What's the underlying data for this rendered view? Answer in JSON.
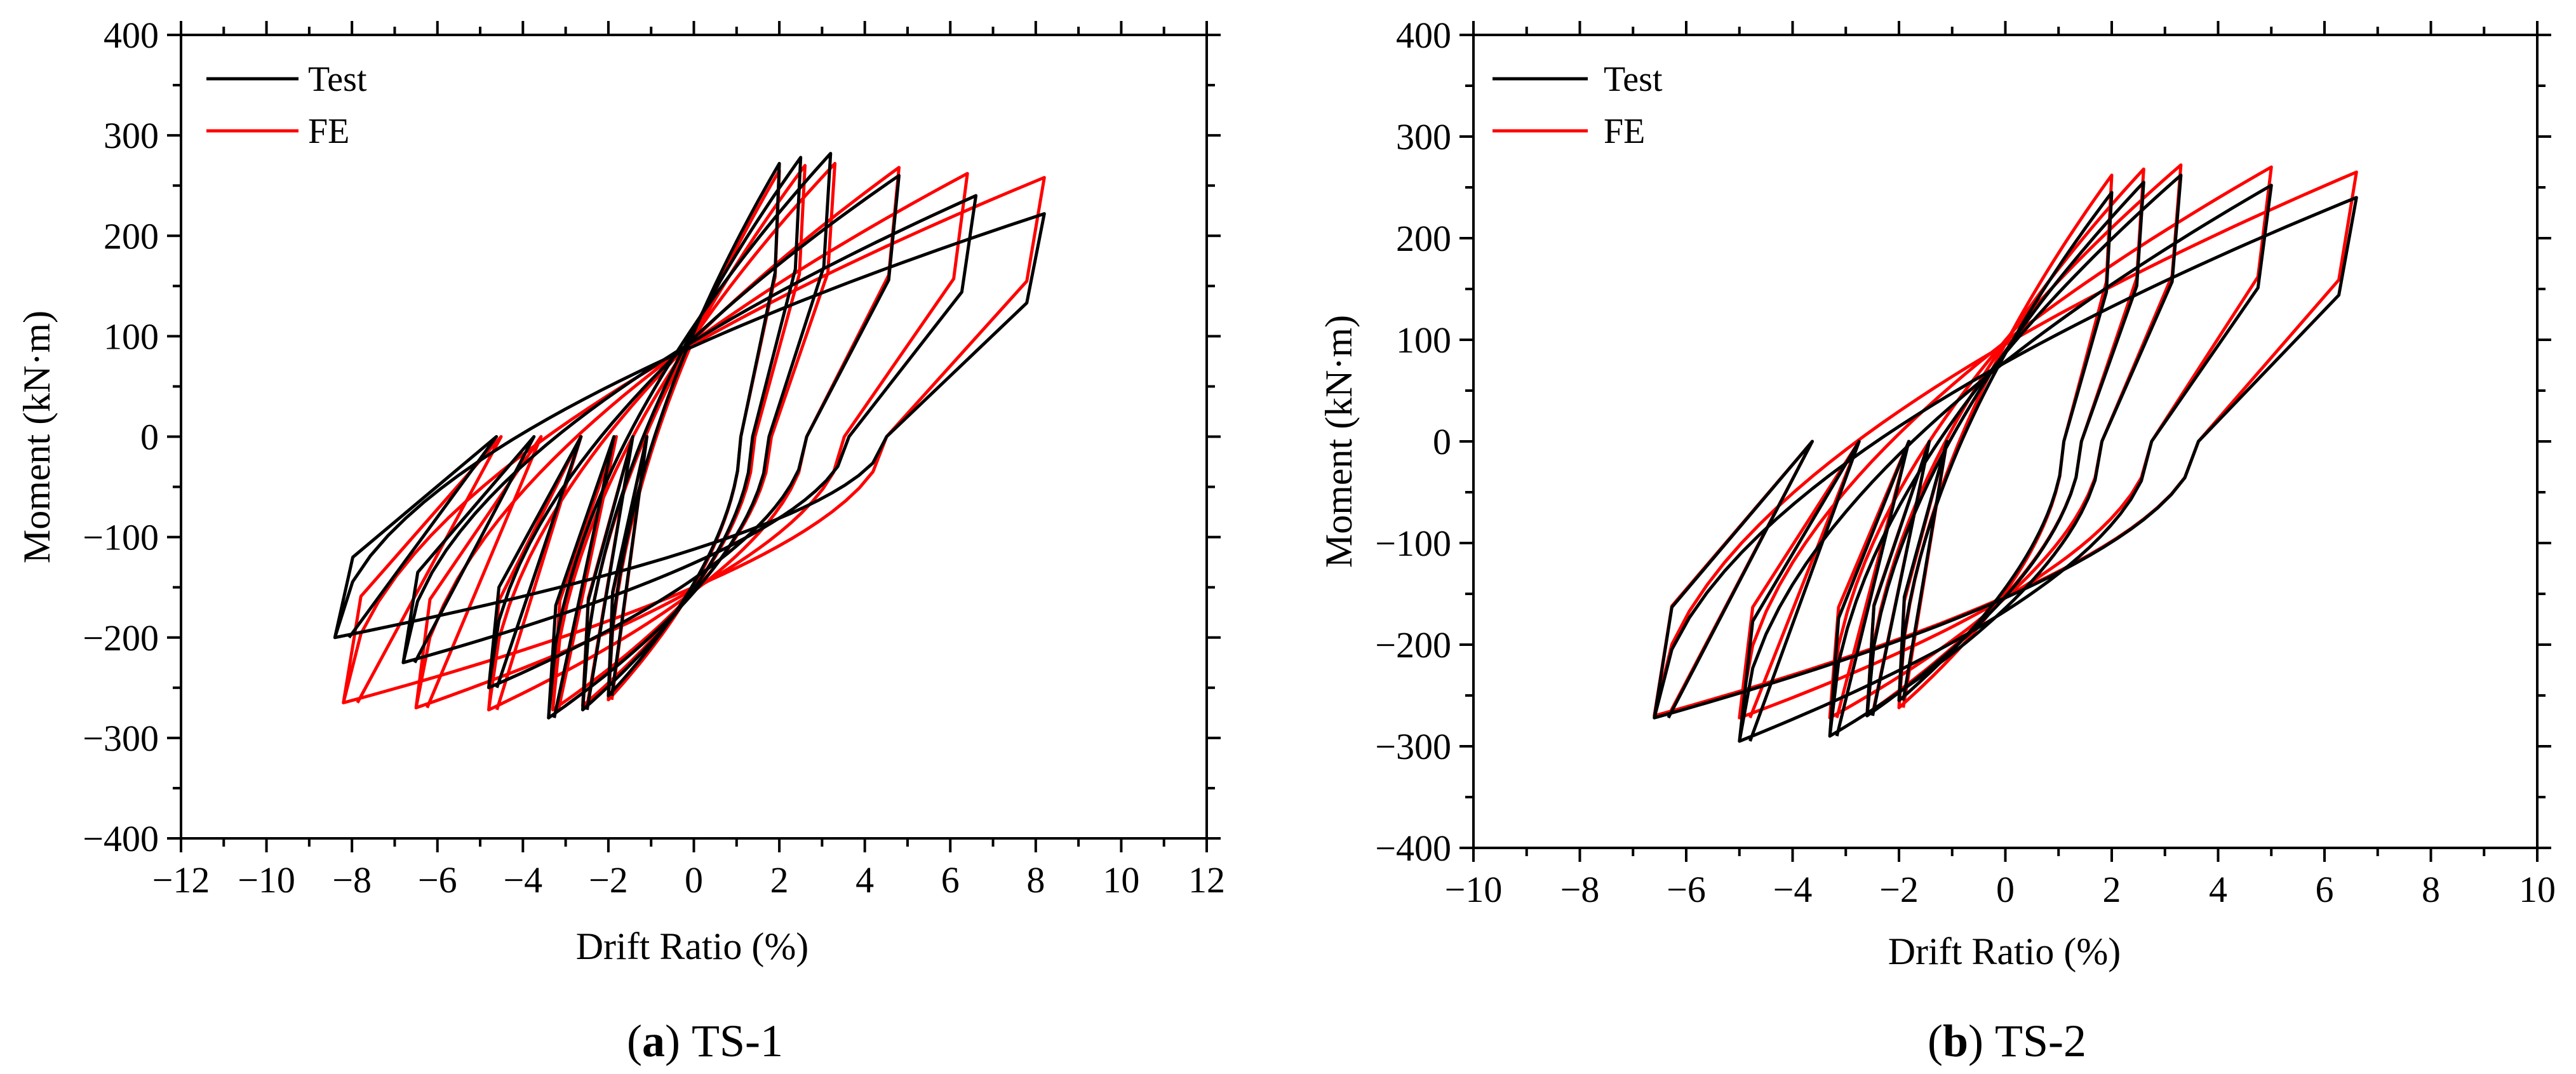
{
  "chart_data": [
    {
      "type": "line",
      "caption": {
        "open": "(",
        "tag": "a",
        "close": ")",
        "text": "TS-1"
      },
      "xlabel": "Drift Ratio (%)",
      "ylabel": "Moment (kN·m)",
      "xlim": [
        -12,
        12
      ],
      "ylim": [
        -400,
        400
      ],
      "xticks": [
        -12,
        -10,
        -8,
        -6,
        -4,
        -2,
        0,
        2,
        4,
        6,
        8,
        10,
        12
      ],
      "yticks": [
        -400,
        -300,
        -200,
        -100,
        0,
        100,
        200,
        300,
        400
      ],
      "xtick_labels": [
        "−12",
        "−10",
        "−8",
        "−6",
        "−4",
        "−2",
        "0",
        "2",
        "4",
        "6",
        "8",
        "10",
        "12"
      ],
      "ytick_labels": [
        "−400",
        "−300",
        "−200",
        "−100",
        "0",
        "100",
        "200",
        "300",
        "400"
      ],
      "legend_position": "top-left",
      "series": [
        {
          "name": "Test",
          "color": "#000000",
          "loops": [
            {
              "d_pos": 2.0,
              "m_pos": 272,
              "d_neg": -2.0,
              "m_neg": -258
            },
            {
              "d_pos": 2.5,
              "m_pos": 278,
              "d_neg": -2.6,
              "m_neg": -272
            },
            {
              "d_pos": 3.2,
              "m_pos": 282,
              "d_neg": -3.4,
              "m_neg": -280
            },
            {
              "d_pos": 4.8,
              "m_pos": 260,
              "d_neg": -4.8,
              "m_neg": -250
            },
            {
              "d_pos": 6.6,
              "m_pos": 240,
              "d_neg": -6.8,
              "m_neg": -225
            },
            {
              "d_pos": 8.2,
              "m_pos": 222,
              "d_neg": -8.4,
              "m_neg": -200
            }
          ]
        },
        {
          "name": "FE",
          "color": "#ff0000",
          "loops": [
            {
              "d_pos": 2.0,
              "m_pos": 265,
              "d_neg": -2.0,
              "m_neg": -262
            },
            {
              "d_pos": 2.6,
              "m_pos": 270,
              "d_neg": -2.6,
              "m_neg": -268
            },
            {
              "d_pos": 3.3,
              "m_pos": 272,
              "d_neg": -3.3,
              "m_neg": -272
            },
            {
              "d_pos": 4.8,
              "m_pos": 268,
              "d_neg": -4.8,
              "m_neg": -272
            },
            {
              "d_pos": 6.4,
              "m_pos": 262,
              "d_neg": -6.5,
              "m_neg": -270
            },
            {
              "d_pos": 8.2,
              "m_pos": 258,
              "d_neg": -8.2,
              "m_neg": -265
            }
          ]
        }
      ]
    },
    {
      "type": "line",
      "caption": {
        "open": "(",
        "tag": "b",
        "close": ")",
        "text": "TS-2"
      },
      "xlabel": "Drift Ratio (%)",
      "ylabel": "Moment (kN·m)",
      "xlim": [
        -10,
        10
      ],
      "ylim": [
        -400,
        400
      ],
      "xticks": [
        -10,
        -8,
        -6,
        -4,
        -2,
        0,
        2,
        4,
        6,
        8,
        10
      ],
      "yticks": [
        -400,
        -300,
        -200,
        -100,
        0,
        100,
        200,
        300,
        400
      ],
      "xtick_labels": [
        "−10",
        "−8",
        "−6",
        "−4",
        "−2",
        "0",
        "2",
        "4",
        "6",
        "8",
        "10"
      ],
      "ytick_labels": [
        "−400",
        "−300",
        "−200",
        "−100",
        "0",
        "100",
        "200",
        "300",
        "400"
      ],
      "legend_position": "top-left",
      "series": [
        {
          "name": "Test",
          "color": "#000000",
          "loops": [
            {
              "d_pos": 2.0,
              "m_pos": 245,
              "d_neg": -2.0,
              "m_neg": -255
            },
            {
              "d_pos": 2.6,
              "m_pos": 255,
              "d_neg": -2.6,
              "m_neg": -270
            },
            {
              "d_pos": 3.3,
              "m_pos": 262,
              "d_neg": -3.3,
              "m_neg": -290
            },
            {
              "d_pos": 5.0,
              "m_pos": 252,
              "d_neg": -5.0,
              "m_neg": -295
            },
            {
              "d_pos": 6.6,
              "m_pos": 240,
              "d_neg": -6.6,
              "m_neg": -272
            }
          ]
        },
        {
          "name": "FE",
          "color": "#ff0000",
          "loops": [
            {
              "d_pos": 2.0,
              "m_pos": 262,
              "d_neg": -2.0,
              "m_neg": -262
            },
            {
              "d_pos": 2.6,
              "m_pos": 268,
              "d_neg": -2.6,
              "m_neg": -268
            },
            {
              "d_pos": 3.3,
              "m_pos": 272,
              "d_neg": -3.3,
              "m_neg": -272
            },
            {
              "d_pos": 5.0,
              "m_pos": 270,
              "d_neg": -5.0,
              "m_neg": -272
            },
            {
              "d_pos": 6.6,
              "m_pos": 265,
              "d_neg": -6.6,
              "m_neg": -270
            }
          ]
        }
      ]
    }
  ]
}
